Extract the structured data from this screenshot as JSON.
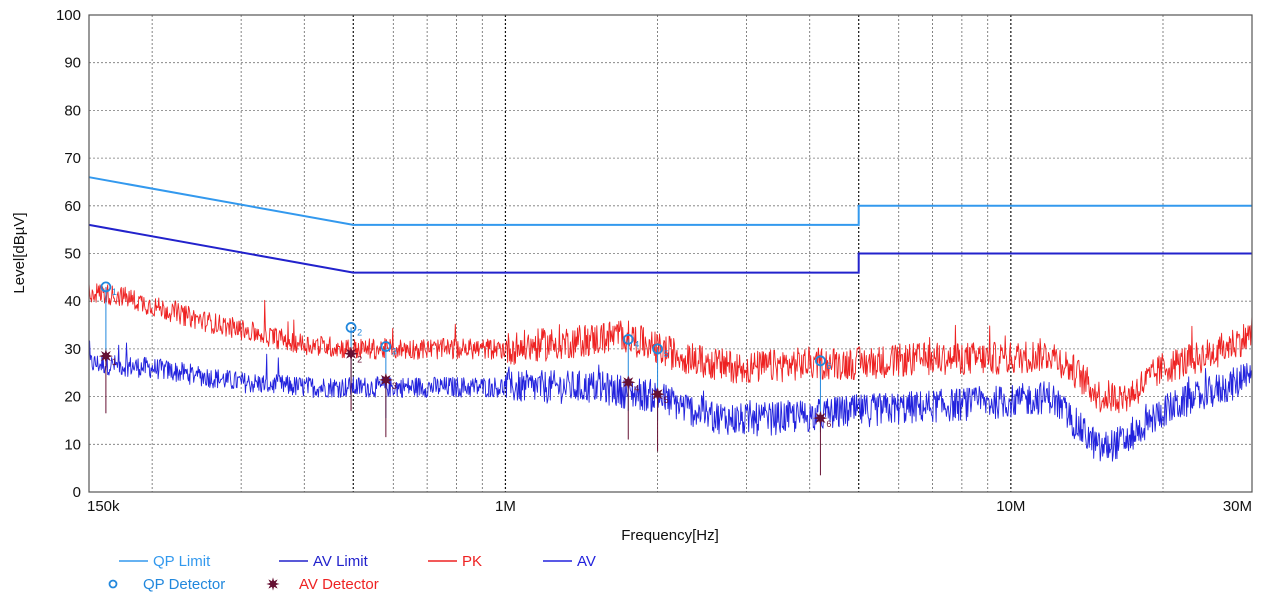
{
  "chart_data": {
    "type": "line",
    "title": "",
    "xlabel": "Frequency[Hz]",
    "ylabel": "Level[dBµV]",
    "x_scale": "log",
    "xlim": [
      150000,
      30000000
    ],
    "ylim": [
      0,
      100
    ],
    "grid": true,
    "x_tick_labels": [
      {
        "value": 150000,
        "label": "150k"
      },
      {
        "value": 1000000,
        "label": "1M"
      },
      {
        "value": 10000000,
        "label": "10M"
      },
      {
        "value": 30000000,
        "label": "30M"
      }
    ],
    "y_ticks": [
      0,
      10,
      20,
      30,
      40,
      50,
      60,
      70,
      80,
      90,
      100
    ],
    "legend_position": "bottom-left",
    "series": [
      {
        "name": "QP Limit",
        "color": "#3399ee",
        "style": "line",
        "points": [
          [
            150000,
            66
          ],
          [
            500000,
            56
          ],
          [
            5000000,
            56
          ],
          [
            5000000,
            60
          ],
          [
            30000000,
            60
          ]
        ]
      },
      {
        "name": "AV Limit",
        "color": "#2222cc",
        "style": "line",
        "points": [
          [
            150000,
            56
          ],
          [
            500000,
            46
          ],
          [
            5000000,
            46
          ],
          [
            5000000,
            50
          ],
          [
            30000000,
            50
          ]
        ]
      },
      {
        "name": "PK",
        "color": "#ee2222",
        "style": "noisy-line",
        "points": [
          [
            150000,
            42
          ],
          [
            175000,
            41
          ],
          [
            200000,
            39
          ],
          [
            250000,
            36
          ],
          [
            300000,
            34
          ],
          [
            400000,
            31
          ],
          [
            500000,
            30
          ],
          [
            700000,
            30
          ],
          [
            1000000,
            30
          ],
          [
            1500000,
            32
          ],
          [
            1700000,
            33
          ],
          [
            2000000,
            30
          ],
          [
            2500000,
            27
          ],
          [
            3000000,
            26
          ],
          [
            4000000,
            27
          ],
          [
            5000000,
            27
          ],
          [
            7000000,
            28
          ],
          [
            10000000,
            28
          ],
          [
            12000000,
            29
          ],
          [
            13500000,
            25
          ],
          [
            15000000,
            20
          ],
          [
            17000000,
            20
          ],
          [
            20000000,
            26
          ],
          [
            25000000,
            29
          ],
          [
            30000000,
            33
          ]
        ]
      },
      {
        "name": "AV",
        "color": "#2222dd",
        "style": "noisy-line",
        "points": [
          [
            150000,
            27
          ],
          [
            200000,
            26
          ],
          [
            300000,
            23
          ],
          [
            400000,
            22
          ],
          [
            500000,
            22
          ],
          [
            700000,
            22
          ],
          [
            1000000,
            22
          ],
          [
            1500000,
            22
          ],
          [
            2000000,
            20
          ],
          [
            2500000,
            16
          ],
          [
            3000000,
            15
          ],
          [
            4000000,
            16
          ],
          [
            5000000,
            17
          ],
          [
            7000000,
            18
          ],
          [
            10000000,
            19
          ],
          [
            12000000,
            20
          ],
          [
            13500000,
            14
          ],
          [
            15000000,
            9
          ],
          [
            17000000,
            11
          ],
          [
            20000000,
            17
          ],
          [
            25000000,
            21
          ],
          [
            30000000,
            24
          ]
        ]
      }
    ],
    "markers": [
      {
        "name": "QP Detector",
        "color": "#2288dd",
        "shape": "circle",
        "points": [
          [
            162000,
            43
          ],
          [
            495000,
            34.5
          ],
          [
            580000,
            30.5
          ],
          [
            1750000,
            32
          ],
          [
            2000000,
            30
          ],
          [
            4200000,
            27.5
          ]
        ]
      },
      {
        "name": "AV Detector",
        "color": "#661133",
        "shape": "star",
        "points": [
          [
            162000,
            28.5
          ],
          [
            495000,
            29
          ],
          [
            580000,
            23.5
          ],
          [
            1750000,
            23
          ],
          [
            2000000,
            20.5
          ],
          [
            4200000,
            15.5
          ]
        ]
      }
    ],
    "marker_labels": [
      "1",
      "2",
      "3",
      "4",
      "5",
      "6"
    ]
  }
}
